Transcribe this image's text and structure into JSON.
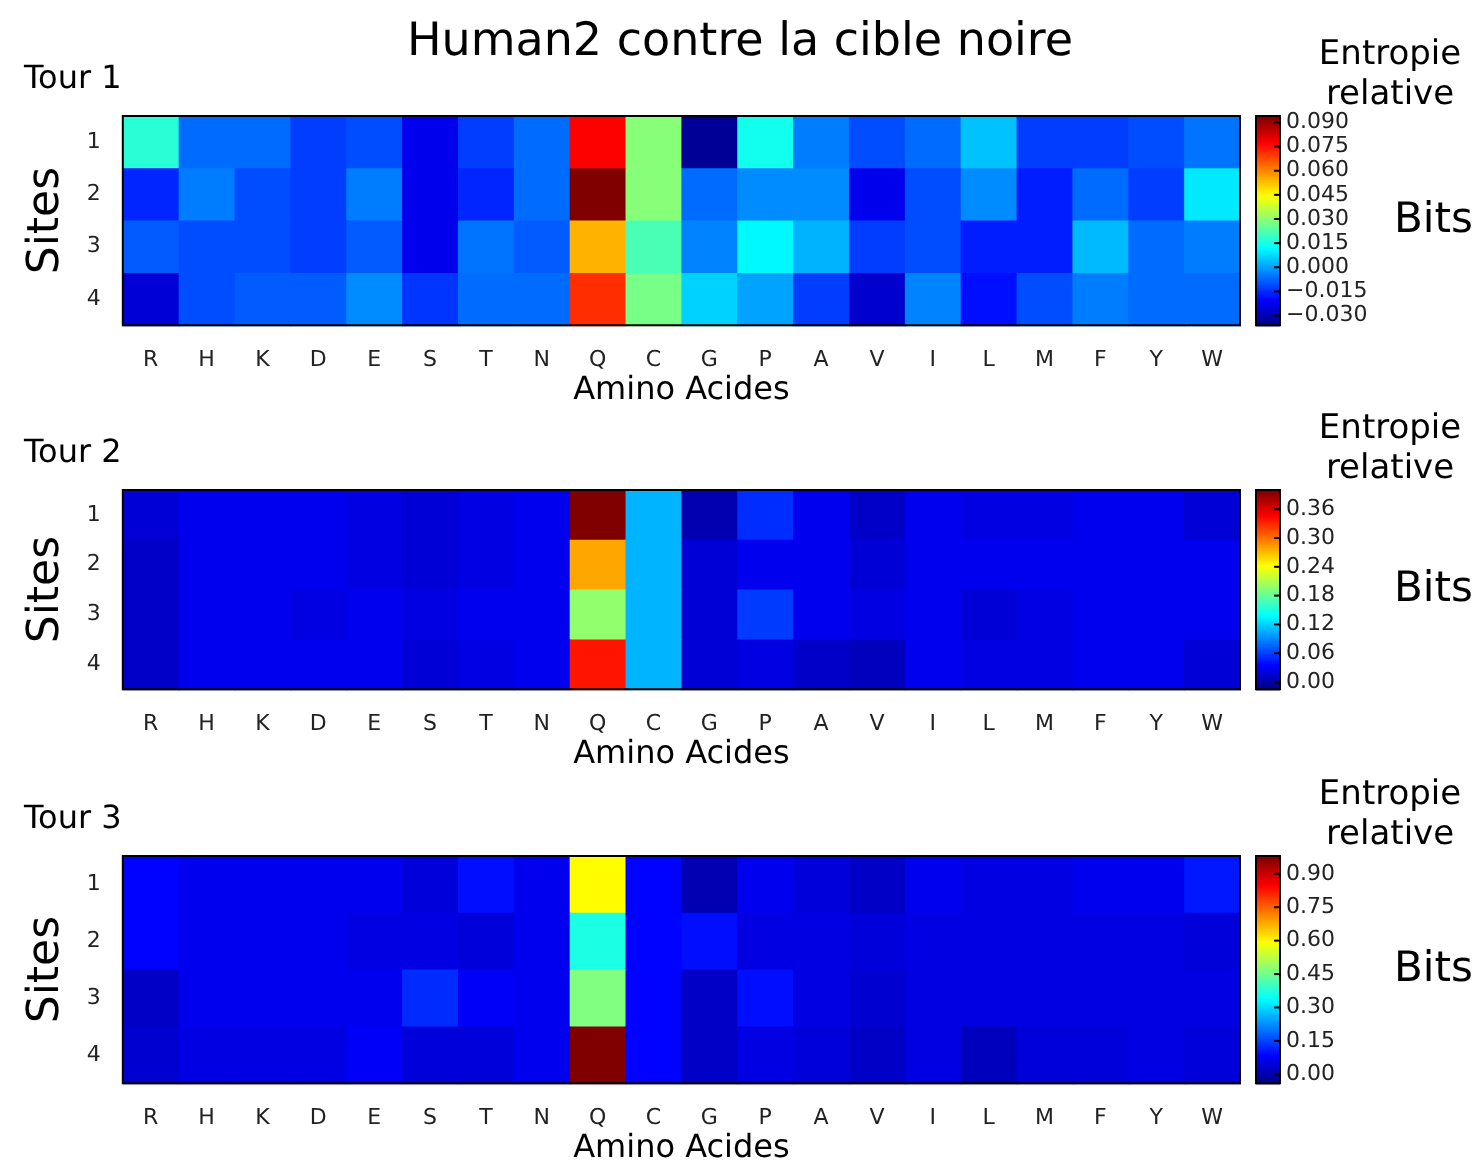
{
  "chart_data": [
    {
      "type": "heatmap",
      "title": "Human2 contre la cible noire",
      "subtitle": "Tour 1",
      "xlabel": "Amino Acides",
      "ylabel": "Sites",
      "clabel": "Entropie relative",
      "annotations": [
        "Bits"
      ],
      "categories": [
        "R",
        "H",
        "K",
        "D",
        "E",
        "S",
        "T",
        "N",
        "Q",
        "C",
        "G",
        "P",
        "A",
        "V",
        "I",
        "L",
        "M",
        "F",
        "Y",
        "W"
      ],
      "y_categories": [
        "1",
        "2",
        "3",
        "4"
      ],
      "cells": [
        [
          0.018,
          -0.006,
          -0.006,
          -0.012,
          -0.01,
          -0.022,
          -0.012,
          -0.006,
          0.078,
          0.03,
          -0.033,
          0.015,
          -0.004,
          -0.01,
          -0.006,
          0.005,
          -0.012,
          -0.012,
          -0.01,
          -0.005
        ],
        [
          -0.015,
          -0.004,
          -0.01,
          -0.012,
          -0.004,
          -0.022,
          -0.015,
          -0.006,
          0.094,
          0.03,
          -0.006,
          -0.002,
          -0.002,
          -0.022,
          -0.01,
          -0.002,
          -0.016,
          -0.006,
          -0.012,
          0.01
        ],
        [
          -0.008,
          -0.01,
          -0.01,
          -0.012,
          -0.008,
          -0.022,
          -0.005,
          -0.008,
          0.055,
          0.022,
          -0.003,
          0.012,
          0.003,
          -0.012,
          -0.01,
          -0.016,
          -0.016,
          0.004,
          -0.006,
          -0.004
        ],
        [
          -0.025,
          -0.01,
          -0.008,
          -0.008,
          -0.002,
          -0.013,
          -0.006,
          -0.006,
          0.072,
          0.028,
          0.007,
          0.001,
          -0.012,
          -0.026,
          -0.003,
          -0.018,
          -0.01,
          -0.004,
          -0.006,
          -0.006
        ]
      ],
      "clim": [
        -0.036,
        0.094
      ],
      "cticks": [
        {
          "value": -0.03,
          "label": "−0.030"
        },
        {
          "value": -0.015,
          "label": "−0.015"
        },
        {
          "value": 0,
          "label": "0.000"
        },
        {
          "value": 0.015,
          "label": "0.015"
        },
        {
          "value": 0.03,
          "label": "0.030"
        },
        {
          "value": 0.045,
          "label": "0.045"
        },
        {
          "value": 0.06,
          "label": "0.060"
        },
        {
          "value": 0.075,
          "label": "0.075"
        },
        {
          "value": 0.09,
          "label": "0.090"
        }
      ]
    },
    {
      "type": "heatmap",
      "subtitle": "Tour 2",
      "xlabel": "Amino Acides",
      "ylabel": "Sites",
      "clabel": "Entropie relative",
      "annotations": [
        "Bits"
      ],
      "categories": [
        "R",
        "H",
        "K",
        "D",
        "E",
        "S",
        "T",
        "N",
        "Q",
        "C",
        "G",
        "P",
        "A",
        "V",
        "I",
        "L",
        "M",
        "F",
        "Y",
        "W"
      ],
      "y_categories": [
        "1",
        "2",
        "3",
        "4"
      ],
      "cells": [
        [
          0.02,
          0.03,
          0.03,
          0.03,
          0.025,
          0.02,
          0.025,
          0.03,
          0.4,
          0.11,
          0.005,
          0.055,
          0.03,
          0.015,
          0.03,
          0.025,
          0.025,
          0.03,
          0.03,
          0.02
        ],
        [
          0.015,
          0.03,
          0.03,
          0.03,
          0.025,
          0.02,
          0.025,
          0.03,
          0.28,
          0.11,
          0.02,
          0.03,
          0.03,
          0.02,
          0.03,
          0.03,
          0.03,
          0.03,
          0.03,
          0.03
        ],
        [
          0.015,
          0.03,
          0.03,
          0.025,
          0.03,
          0.025,
          0.03,
          0.03,
          0.2,
          0.11,
          0.02,
          0.06,
          0.03,
          0.025,
          0.03,
          0.02,
          0.025,
          0.03,
          0.03,
          0.03
        ],
        [
          0.015,
          0.03,
          0.03,
          0.03,
          0.03,
          0.02,
          0.025,
          0.03,
          0.34,
          0.11,
          0.02,
          0.025,
          0.015,
          0.01,
          0.03,
          0.025,
          0.025,
          0.03,
          0.03,
          0.02
        ]
      ],
      "clim": [
        -0.015,
        0.4
      ],
      "cticks": [
        {
          "value": 0,
          "label": "0.00"
        },
        {
          "value": 0.06,
          "label": "0.06"
        },
        {
          "value": 0.12,
          "label": "0.12"
        },
        {
          "value": 0.18,
          "label": "0.18"
        },
        {
          "value": 0.24,
          "label": "0.24"
        },
        {
          "value": 0.3,
          "label": "0.30"
        },
        {
          "value": 0.36,
          "label": "0.36"
        }
      ]
    },
    {
      "type": "heatmap",
      "subtitle": "Tour 3",
      "xlabel": "Amino Acides",
      "ylabel": "Sites",
      "clabel": "Entropie relative",
      "annotations": [
        "Bits"
      ],
      "categories": [
        "R",
        "H",
        "K",
        "D",
        "E",
        "S",
        "T",
        "N",
        "Q",
        "C",
        "G",
        "P",
        "A",
        "V",
        "I",
        "L",
        "M",
        "F",
        "Y",
        "W"
      ],
      "y_categories": [
        "1",
        "2",
        "3",
        "4"
      ],
      "cells": [
        [
          0.09,
          0.07,
          0.07,
          0.07,
          0.07,
          0.05,
          0.1,
          0.07,
          0.6,
          0.09,
          0.01,
          0.07,
          0.05,
          0.03,
          0.07,
          0.06,
          0.06,
          0.07,
          0.07,
          0.11
        ],
        [
          0.09,
          0.07,
          0.07,
          0.07,
          0.06,
          0.06,
          0.05,
          0.07,
          0.37,
          0.09,
          0.1,
          0.06,
          0.06,
          0.05,
          0.06,
          0.06,
          0.06,
          0.06,
          0.06,
          0.05
        ],
        [
          0.03,
          0.07,
          0.07,
          0.07,
          0.07,
          0.13,
          0.08,
          0.07,
          0.47,
          0.09,
          0.03,
          0.1,
          0.06,
          0.04,
          0.06,
          0.06,
          0.06,
          0.06,
          0.06,
          0.06
        ],
        [
          0.04,
          0.06,
          0.06,
          0.06,
          0.08,
          0.05,
          0.05,
          0.07,
          0.98,
          0.09,
          0.03,
          0.06,
          0.05,
          0.03,
          0.06,
          0.02,
          0.05,
          0.05,
          0.06,
          0.05
        ]
      ],
      "clim": [
        -0.04,
        0.98
      ],
      "cticks": [
        {
          "value": 0,
          "label": "0.00"
        },
        {
          "value": 0.15,
          "label": "0.15"
        },
        {
          "value": 0.3,
          "label": "0.30"
        },
        {
          "value": 0.45,
          "label": "0.45"
        },
        {
          "value": 0.6,
          "label": "0.60"
        },
        {
          "value": 0.75,
          "label": "0.75"
        },
        {
          "value": 0.9,
          "label": "0.90"
        }
      ]
    }
  ]
}
